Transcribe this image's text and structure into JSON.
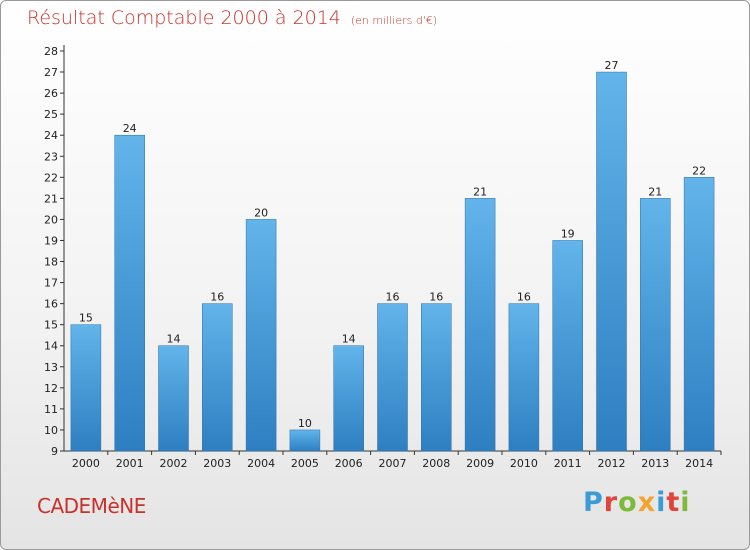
{
  "header": {
    "title": "Résultat Comptable 2000 à 2014",
    "subtitle": "(en milliers d'€)"
  },
  "footer": {
    "commune": "CADEMèNE",
    "logo_text": "Proxiti",
    "logo_colors": [
      "#3b9bd6",
      "#e2433a",
      "#7dba3b",
      "#f2a431",
      "#3b9bd6",
      "#e2433a",
      "#7dba3b"
    ]
  },
  "chart_data": {
    "type": "bar",
    "title": "Résultat Comptable 2000 à 2014",
    "subtitle": "(en milliers d'€)",
    "categories": [
      "2000",
      "2001",
      "2002",
      "2003",
      "2004",
      "2005",
      "2006",
      "2007",
      "2008",
      "2009",
      "2010",
      "2011",
      "2012",
      "2013",
      "2014"
    ],
    "values": [
      15,
      24,
      14,
      16,
      20,
      10,
      14,
      16,
      16,
      21,
      16,
      19,
      27,
      21,
      22
    ],
    "ylim": [
      9,
      28
    ],
    "yticks": [
      9,
      10,
      11,
      12,
      13,
      14,
      15,
      16,
      17,
      18,
      19,
      20,
      21,
      22,
      23,
      24,
      25,
      26,
      27,
      28
    ],
    "xlabel": "",
    "ylabel": "",
    "grid": false,
    "colors": {
      "bar_top": "#62b4ea",
      "bar_bottom": "#2d7fc1",
      "bar_edge": "#2a6fa8",
      "axis": "#333333",
      "label": "#222222"
    }
  }
}
